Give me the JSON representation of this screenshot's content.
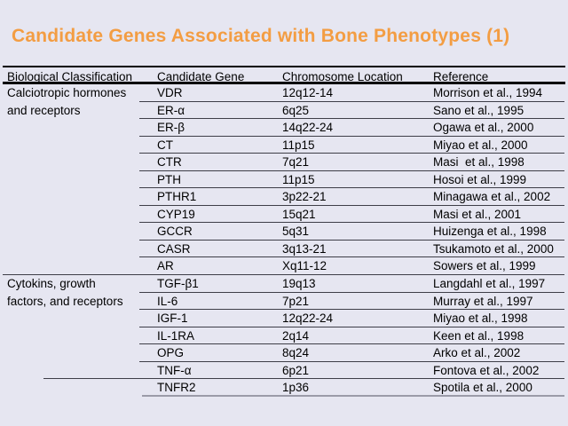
{
  "slide": {
    "title": "Candidate Genes Associated with Bone Phenotypes (1)"
  },
  "colors": {
    "background": "#e6e6f1",
    "title_text": "#f39d43",
    "body_text": "#000000",
    "thick_rule": "#000000",
    "thin_rule": "#3e3e48",
    "bottom_rule": "#9b9ba8"
  },
  "table": {
    "headers": [
      "Biological Classification",
      "Candidate Gene",
      "Chromosome Location",
      "Reference"
    ],
    "rows": [
      {
        "classification": "Calciotropic hormones",
        "gene": "VDR",
        "location": "12q12-14",
        "reference": "Morrison et al., 1994",
        "separator": "cols"
      },
      {
        "classification": "and receptors",
        "gene": "ER-α",
        "location": "6q25",
        "reference": "Sano et al., 1995",
        "separator": "cols"
      },
      {
        "classification": "",
        "gene": "ER-β",
        "location": "14q22-24",
        "reference": "Ogawa et al., 2000",
        "separator": "cols"
      },
      {
        "classification": "",
        "gene": "CT",
        "location": "11p15",
        "reference": "Miyao et al., 2000",
        "separator": "cols"
      },
      {
        "classification": "",
        "gene": "CTR",
        "location": "7q21",
        "reference": "Masi  et al., 1998",
        "separator": "cols"
      },
      {
        "classification": "",
        "gene": "PTH",
        "location": "11p15",
        "reference": "Hosoi et al., 1999",
        "separator": "cols"
      },
      {
        "classification": "",
        "gene": "PTHR1",
        "location": "3p22-21",
        "reference": "Minagawa et al., 2002",
        "separator": "cols"
      },
      {
        "classification": "",
        "gene": "CYP19",
        "location": "15q21",
        "reference": "Masi et al., 2001",
        "separator": "cols"
      },
      {
        "classification": "",
        "gene": "GCCR",
        "location": "5q31",
        "reference": "Huizenga et al., 1998",
        "separator": "cols"
      },
      {
        "classification": "",
        "gene": "CASR",
        "location": "3q13-21",
        "reference": "Tsukamoto et al., 2000",
        "separator": "cols"
      },
      {
        "classification": "",
        "gene": "AR",
        "location": "Xq11-12",
        "reference": "Sowers et al., 1999",
        "separator": "full"
      },
      {
        "classification": "Cytokins, growth",
        "gene": "TGF-β1",
        "location": "19q13",
        "reference": "Langdahl et al., 1997",
        "separator": "cols"
      },
      {
        "classification": "factors, and receptors",
        "gene": "IL-6",
        "location": "7p21",
        "reference": "Murray et al., 1997",
        "separator": "cols"
      },
      {
        "classification": "",
        "gene": "IGF-1",
        "location": "12q22-24",
        "reference": "Miyao et al., 1998",
        "separator": "cols"
      },
      {
        "classification": "",
        "gene": "IL-1RA",
        "location": "2q14",
        "reference": "Keen et al., 1998",
        "separator": "cols"
      },
      {
        "classification": "",
        "gene": "OPG",
        "location": "8q24",
        "reference": "Arko et al., 2002",
        "separator": "cols"
      },
      {
        "classification": "",
        "gene": "TNF-α",
        "location": "6p21",
        "reference": "Fontova et al., 2002",
        "separator": "left48"
      },
      {
        "classification": "",
        "gene": "TNFR2",
        "location": "1p36",
        "reference": "Spotila et al., 2000",
        "separator": "bottom"
      }
    ]
  }
}
